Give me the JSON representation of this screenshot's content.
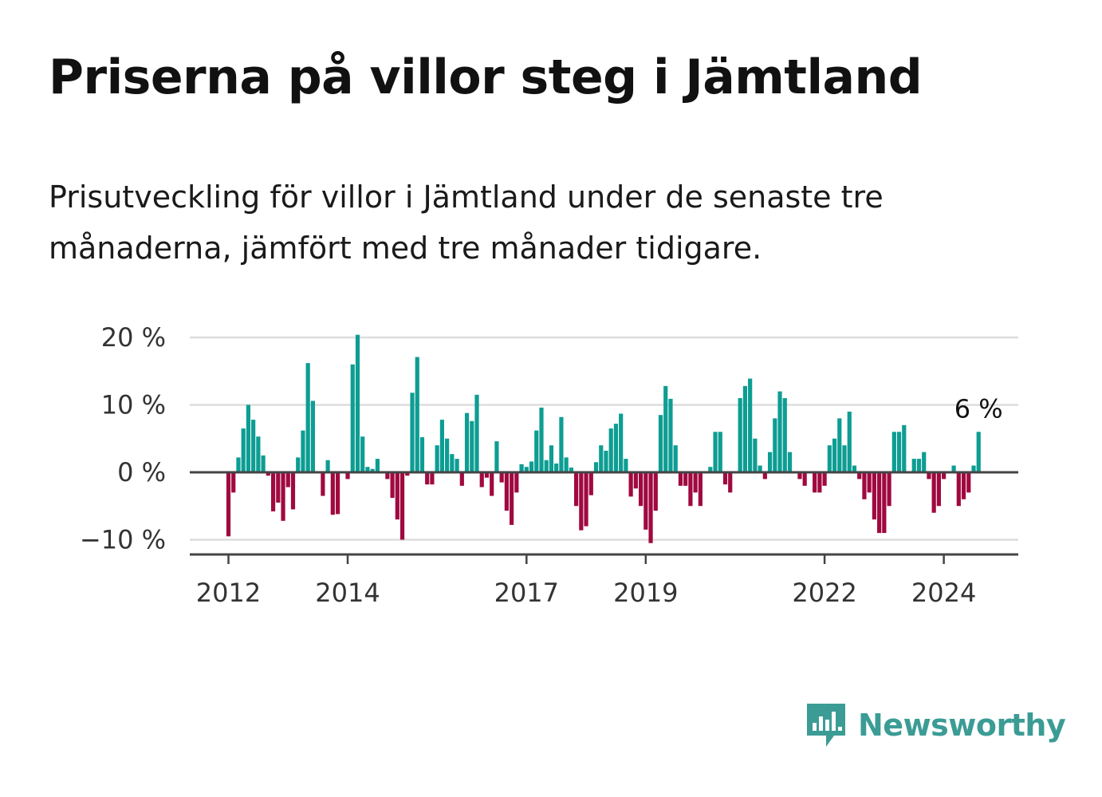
{
  "title": "Priserna på villor steg i Jämtland",
  "subtitle": "Prisutveckling för villor i Jämtland under de senaste tre månaderna, jämfört med tre månader tidigare.",
  "brand": {
    "name": "Newsworthy",
    "icon": "newsworthy-logo-icon",
    "color": "#3b9c95"
  },
  "colors": {
    "positive": "#0d9d93",
    "negative": "#a00940",
    "grid": "#dddddd",
    "zero_line": "#444444"
  },
  "chart_data": {
    "type": "bar",
    "title": "Priserna på villor steg i Jämtland",
    "subtitle": "Prisutveckling för villor i Jämtland under de senaste tre månaderna, jämfört med tre månader tidigare.",
    "unit": "%",
    "x_start": "2012-01",
    "frequency": "monthly",
    "ylim": [
      -12,
      21
    ],
    "yticks": [
      20,
      10,
      0,
      -10
    ],
    "ytick_labels": [
      "20 %",
      "10 %",
      "0 %",
      "−10 %"
    ],
    "xticks": [
      "2012",
      "2014",
      "2017",
      "2019",
      "2022",
      "2024"
    ],
    "grid": true,
    "annotation": {
      "label": "6 %",
      "value": 6,
      "period": "last"
    },
    "values": [
      -9.5,
      -3,
      2.2,
      6.5,
      10,
      7.8,
      5.3,
      2.5,
      -0.5,
      -5.8,
      -4.5,
      -7.2,
      -2.2,
      -5.5,
      2.2,
      6.2,
      16.2,
      10.6,
      0,
      -3.5,
      1.8,
      -6.3,
      -6.2,
      0,
      -1,
      16,
      20.4,
      5.3,
      0.8,
      0.5,
      2,
      0,
      -1,
      -3.8,
      -7,
      -10,
      -0.5,
      11.8,
      17.1,
      5.2,
      -1.8,
      -1.8,
      4,
      7.8,
      5,
      2.7,
      2,
      -2,
      8.8,
      7.6,
      11.5,
      -2.2,
      -0.8,
      -3.5,
      4.6,
      -1.5,
      -5.7,
      -7.8,
      -3,
      1.2,
      0.8,
      1.6,
      6.2,
      9.6,
      1.8,
      4,
      1.3,
      8.2,
      2.2,
      0.7,
      -5,
      -8.6,
      -8,
      -3.4,
      1.5,
      4,
      3.2,
      6.5,
      7.2,
      8.7,
      2,
      -3.6,
      -2.4,
      -5,
      -8.5,
      -10.5,
      -5.7,
      8.5,
      12.8,
      10.9,
      4,
      -2,
      -2,
      -5,
      -3,
      -5,
      0,
      0.8,
      6,
      6,
      -1.8,
      -3,
      0,
      11,
      12.8,
      13.9,
      5,
      1,
      -1,
      3,
      8,
      12,
      11,
      3,
      0,
      -1,
      -2,
      0,
      -3,
      -3,
      -2,
      4,
      5,
      8,
      4,
      9,
      1,
      -1,
      -4,
      -3,
      -7,
      -9,
      -9,
      -5,
      6,
      6,
      7,
      0,
      2,
      2,
      3,
      -1,
      -6,
      -5,
      -1,
      0,
      1,
      -5,
      -4,
      -3,
      1,
      6
    ]
  }
}
